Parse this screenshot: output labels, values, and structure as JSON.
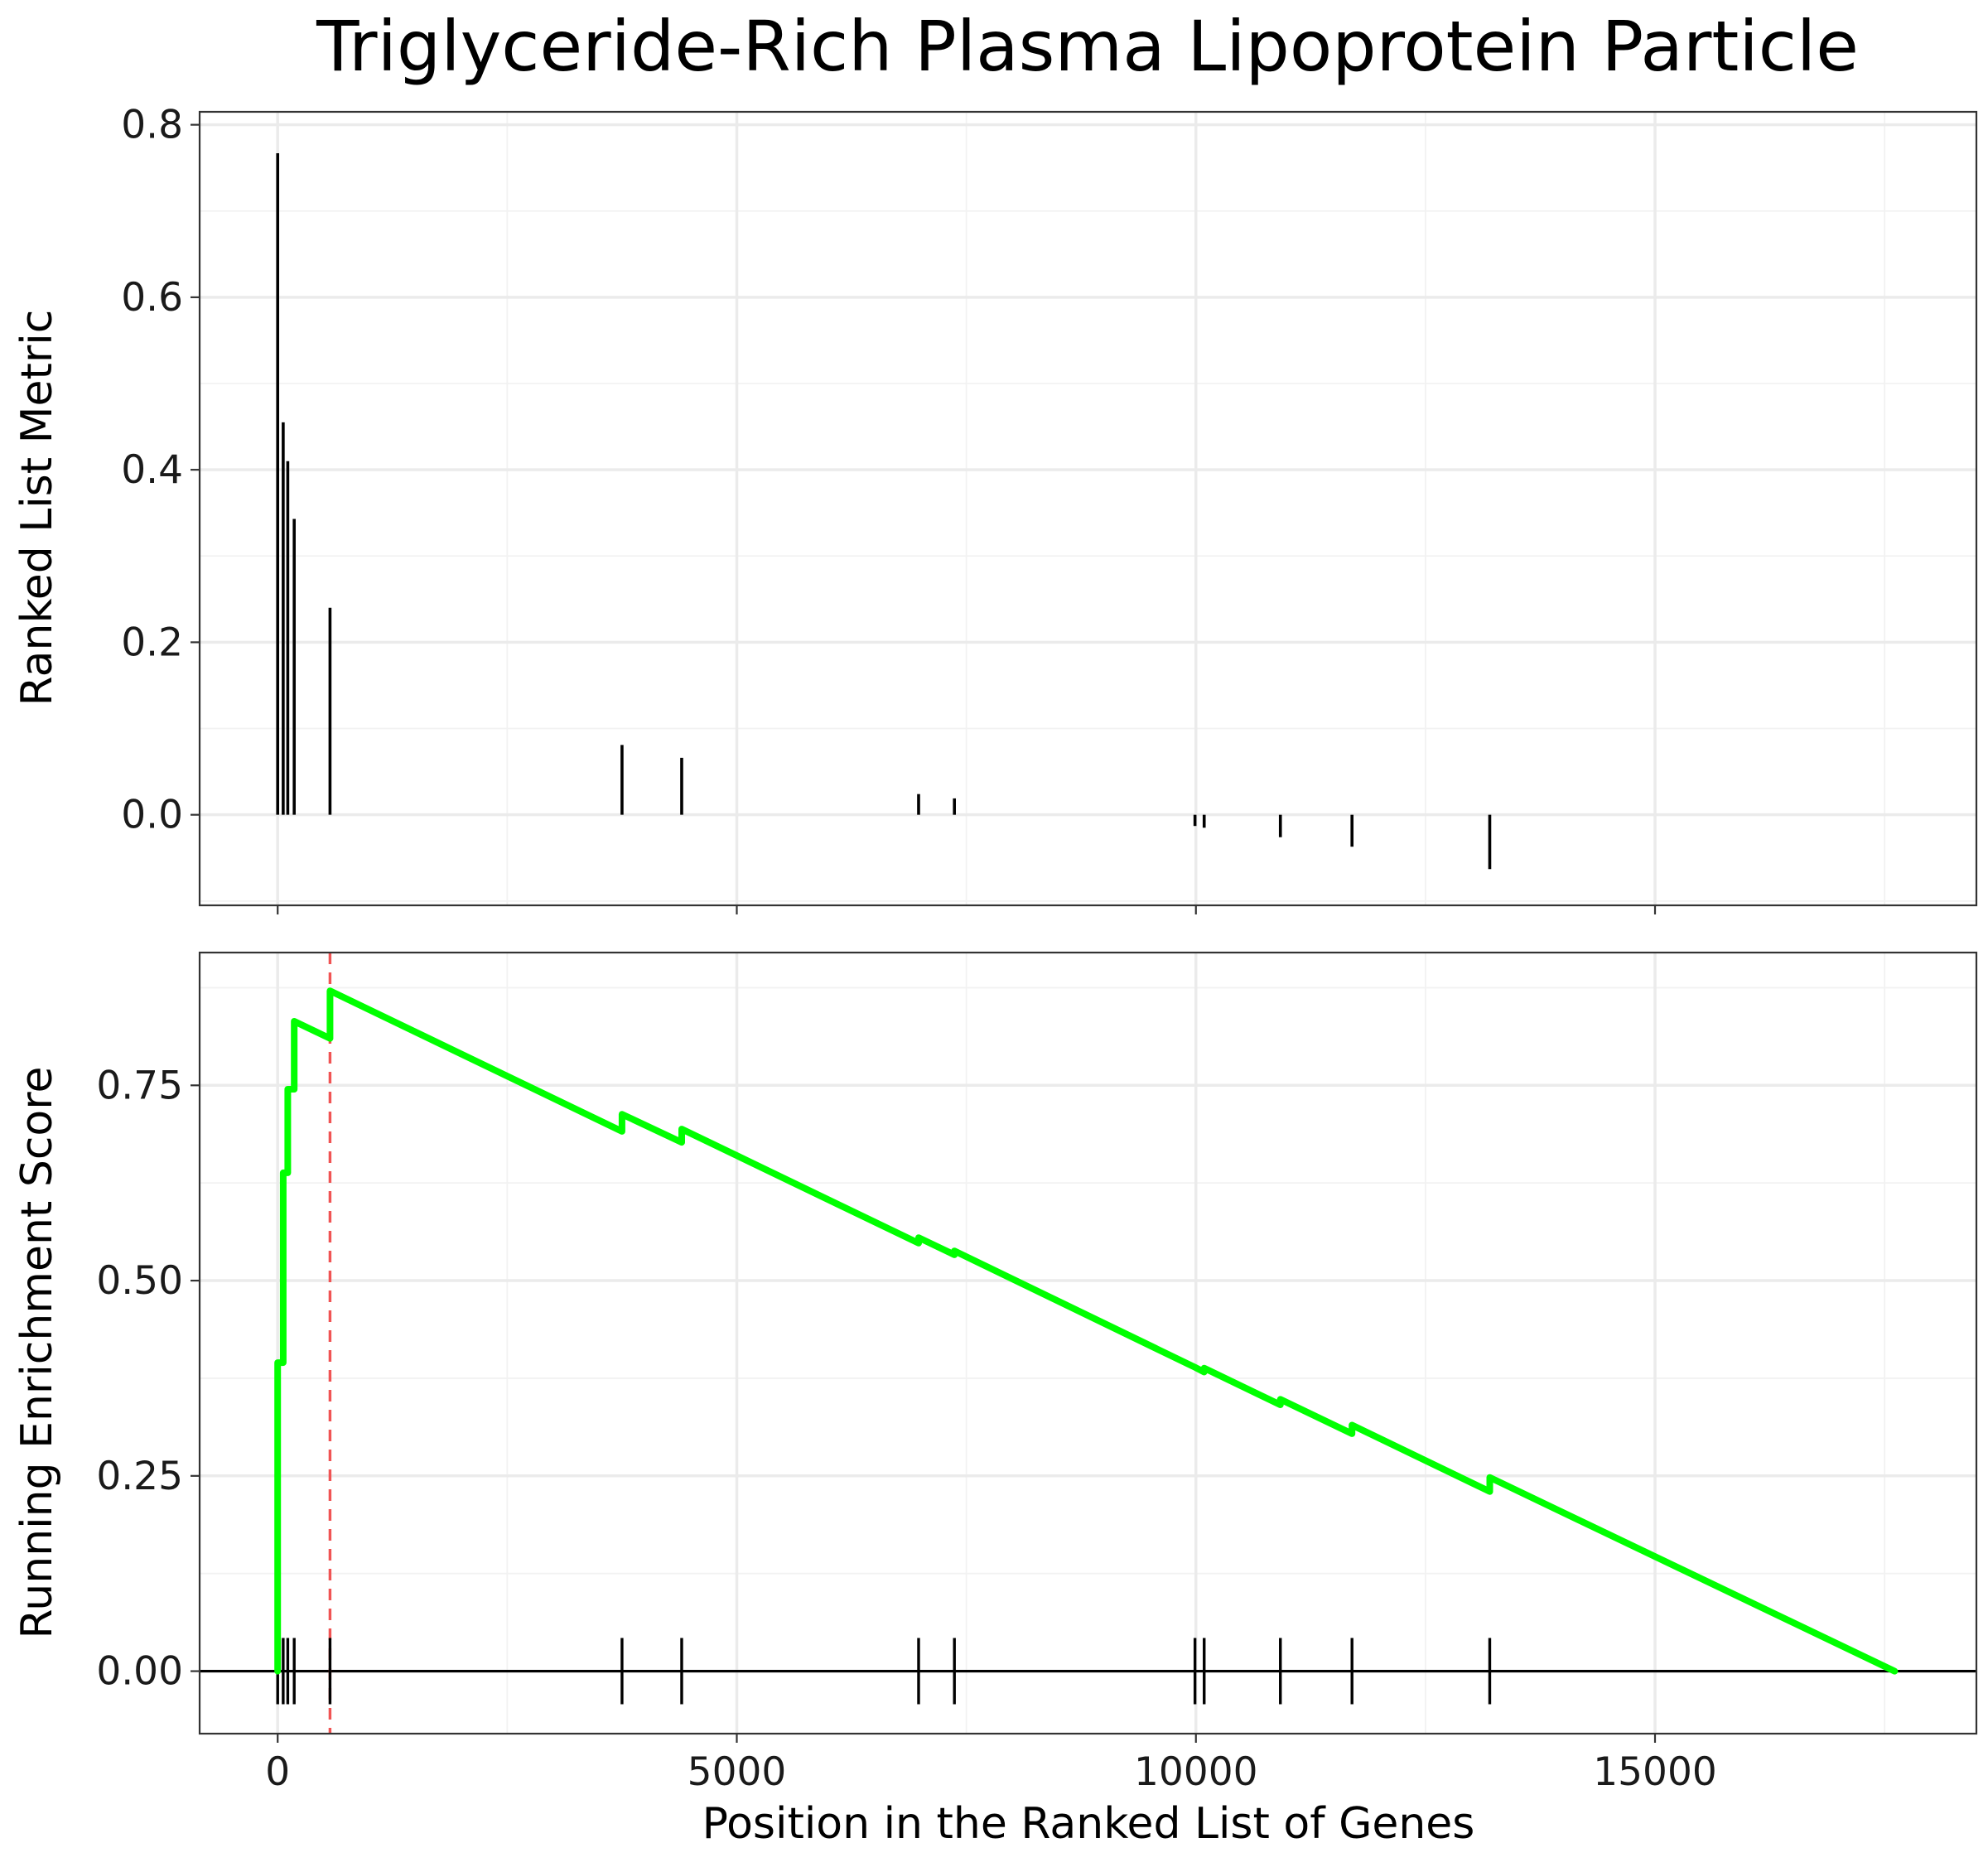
{
  "chart_data": [
    {
      "type": "bar",
      "title": "Triglyceride-Rich Plasma Lipoprotein Particle",
      "xlabel": "",
      "ylabel": "Ranked List Metric",
      "xlim": [
        -850,
        18500
      ],
      "ylim": [
        -0.105,
        0.815
      ],
      "yticks": [
        "0.0",
        "0.2",
        "0.4",
        "0.6",
        "0.8"
      ],
      "ytick_values": [
        0.0,
        0.2,
        0.4,
        0.6,
        0.8
      ],
      "grid": true,
      "points": [
        {
          "x": 0,
          "y": 0.767
        },
        {
          "x": 60,
          "y": 0.455
        },
        {
          "x": 110,
          "y": 0.41
        },
        {
          "x": 180,
          "y": 0.343
        },
        {
          "x": 570,
          "y": 0.24
        },
        {
          "x": 3750,
          "y": 0.081
        },
        {
          "x": 4400,
          "y": 0.066
        },
        {
          "x": 6980,
          "y": 0.024
        },
        {
          "x": 7370,
          "y": 0.019
        },
        {
          "x": 9990,
          "y": -0.013
        },
        {
          "x": 10090,
          "y": -0.015
        },
        {
          "x": 10920,
          "y": -0.026
        },
        {
          "x": 11700,
          "y": -0.037
        },
        {
          "x": 13200,
          "y": -0.063
        }
      ]
    },
    {
      "type": "line",
      "xlabel": "Position in the Ranked List of Genes",
      "ylabel": "Running Enrichment Score",
      "xlim": [
        -850,
        18500
      ],
      "ylim": [
        -0.08,
        0.92
      ],
      "xticks": [
        "0",
        "5000",
        "10000",
        "15000"
      ],
      "xtick_values": [
        0,
        5000,
        10000,
        15000
      ],
      "yticks": [
        "0.00",
        "0.25",
        "0.50",
        "0.75"
      ],
      "ytick_values": [
        0.0,
        0.25,
        0.5,
        0.75
      ],
      "grid": true,
      "line_color": "#00ff00",
      "peak_line_color": "#f05454",
      "peak_x": 570,
      "hits": [
        0,
        60,
        110,
        180,
        570,
        3750,
        4400,
        6980,
        7370,
        9990,
        10090,
        10920,
        11700,
        13200
      ],
      "series": [
        {
          "x": [
            0,
            0,
            60,
            60,
            110,
            110,
            180,
            180,
            570,
            570,
            3750,
            3750,
            4400,
            4400,
            6980,
            6980,
            7370,
            7370,
            9990,
            9990,
            10090,
            10090,
            10920,
            10920,
            11700,
            11700,
            13200,
            13200,
            17610
          ],
          "values": [
            0.0,
            0.395,
            0.395,
            0.638,
            0.638,
            0.745,
            0.745,
            0.832,
            0.81,
            0.871,
            0.691,
            0.713,
            0.677,
            0.694,
            0.548,
            0.555,
            0.533,
            0.538,
            0.389,
            0.389,
            0.383,
            0.388,
            0.341,
            0.348,
            0.304,
            0.315,
            0.23,
            0.248,
            0.0
          ]
        }
      ]
    }
  ]
}
